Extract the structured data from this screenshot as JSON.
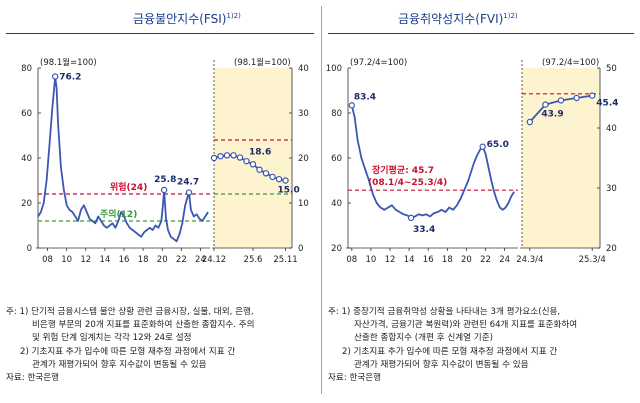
{
  "titles": {
    "fsi": "금융불안지수(FSI)",
    "fsi_sup": "1)2)",
    "fvi": "금융취약성지수(FVI)",
    "fvi_sup": "1)2)"
  },
  "colors": {
    "line": "#3a57b4",
    "marker_fill": "#ffffff",
    "danger": "#c8102e",
    "caution": "#3a9a3a",
    "shade": "#fdf3cf",
    "axis": "#333333",
    "title": "#1a3e8a"
  },
  "chart_data": [
    {
      "type": "line",
      "name": "FSI",
      "panels": [
        {
          "id": "fsi-main",
          "axis_note": "(98.1월=100)",
          "ylim": [
            0,
            80
          ],
          "yticks": [
            0,
            20,
            40,
            60,
            80
          ],
          "xlim": [
            2007,
            2025
          ],
          "xticks": [
            "08",
            "10",
            "12",
            "14",
            "16",
            "18",
            "20",
            "22",
            "24"
          ],
          "xtick_values": [
            2008,
            2010,
            2012,
            2014,
            2016,
            2018,
            2020,
            2022,
            2024
          ],
          "series": [
            {
              "name": "FSI",
              "x": [
                2007.0,
                2007.3,
                2007.6,
                2007.9,
                2008.2,
                2008.5,
                2008.8,
                2008.95,
                2009.1,
                2009.4,
                2009.7,
                2010.0,
                2010.3,
                2010.6,
                2010.9,
                2011.2,
                2011.5,
                2011.8,
                2012.1,
                2012.4,
                2012.7,
                2013.0,
                2013.3,
                2013.6,
                2013.9,
                2014.2,
                2014.5,
                2014.8,
                2015.1,
                2015.4,
                2015.7,
                2016.0,
                2016.3,
                2016.6,
                2016.9,
                2017.2,
                2017.5,
                2017.8,
                2018.1,
                2018.4,
                2018.7,
                2019.0,
                2019.3,
                2019.6,
                2019.9,
                2020.05,
                2020.2,
                2020.4,
                2020.6,
                2020.9,
                2021.2,
                2021.5,
                2021.8,
                2022.1,
                2022.4,
                2022.6,
                2022.8,
                2023.0,
                2023.3,
                2023.6,
                2023.9,
                2024.2,
                2024.5,
                2024.8
              ],
              "values": [
                14,
                16,
                20,
                30,
                46,
                62,
                76.2,
                71,
                55,
                36,
                26,
                19,
                17,
                16,
                14,
                12,
                17,
                19,
                16,
                13,
                12,
                11,
                14,
                12,
                10,
                9,
                10,
                11,
                9,
                12,
                16,
                14,
                11,
                9,
                8,
                7,
                6,
                5,
                7,
                8,
                9,
                8,
                10,
                9,
                12,
                18,
                25.8,
                13,
                8,
                5,
                4,
                3,
                6,
                11,
                19,
                22,
                24.7,
                17,
                14,
                15,
                13,
                12,
                14,
                16
              ]
            }
          ],
          "thresholds": [
            {
              "label": "위험(24)",
              "value": 24,
              "kind": "danger"
            },
            {
              "label": "주의(12)",
              "value": 12,
              "kind": "caution"
            }
          ],
          "annotations": [
            {
              "text": "76.2",
              "x": 2008.8,
              "y": 76.2
            },
            {
              "text": "25.8",
              "x": 2020.2,
              "y": 25.8
            },
            {
              "text": "24.7",
              "x": 2022.8,
              "y": 24.7
            }
          ]
        },
        {
          "id": "fsi-zoom",
          "axis_note": "(98.1월=100)",
          "ylim": [
            0,
            40
          ],
          "yticks": [
            0,
            10,
            20,
            30,
            40
          ],
          "xlim": [
            0,
            12
          ],
          "xticks": [
            "24.12",
            "25.6",
            "25.11"
          ],
          "xtick_values": [
            0,
            6,
            11
          ],
          "series": [
            {
              "name": "FSI",
              "x": [
                0,
                1,
                2,
                3,
                4,
                5,
                6,
                7,
                8,
                9,
                10,
                11
              ],
              "values": [
                20.0,
                20.4,
                20.6,
                20.6,
                20.1,
                19.3,
                18.6,
                17.4,
                16.6,
                15.8,
                15.3,
                15.0
              ]
            }
          ],
          "thresholds": [
            {
              "label": "위험(24)",
              "value": 24,
              "kind": "danger"
            },
            {
              "label": "주의(12)",
              "value": 12,
              "kind": "caution"
            }
          ],
          "annotations": [
            {
              "text": "18.6",
              "x": 6,
              "y": 18.6
            },
            {
              "text": "15.0",
              "x": 11,
              "y": 15.0
            }
          ]
        }
      ]
    },
    {
      "type": "line",
      "name": "FVI",
      "panels": [
        {
          "id": "fvi-main",
          "axis_note": "(97.2/4=100)",
          "ylim": [
            20,
            100
          ],
          "yticks": [
            20,
            40,
            60,
            80,
            100
          ],
          "xlim": [
            2007.6,
            2025.4
          ],
          "xticks": [
            "08",
            "10",
            "12",
            "14",
            "16",
            "18",
            "20",
            "22",
            "24"
          ],
          "xtick_values": [
            2008,
            2010,
            2012,
            2014,
            2016,
            2018,
            2020,
            2022,
            2024
          ],
          "series": [
            {
              "name": "FVI",
              "x": [
                2008.0,
                2008.3,
                2008.6,
                2009.0,
                2009.4,
                2009.8,
                2010.2,
                2010.6,
                2011.0,
                2011.4,
                2011.8,
                2012.2,
                2012.6,
                2013.0,
                2013.4,
                2013.8,
                2014.2,
                2014.6,
                2015.0,
                2015.4,
                2015.8,
                2016.2,
                2016.6,
                2017.0,
                2017.4,
                2017.8,
                2018.2,
                2018.6,
                2019.0,
                2019.4,
                2019.8,
                2020.2,
                2020.5,
                2020.8,
                2021.1,
                2021.4,
                2021.7,
                2022.0,
                2022.3,
                2022.6,
                2022.9,
                2023.2,
                2023.5,
                2023.8,
                2024.1,
                2024.4,
                2024.7,
                2025.0
              ],
              "values": [
                83.4,
                78,
                68,
                60,
                55,
                50,
                44,
                40,
                38,
                37,
                38,
                39,
                37,
                36,
                35,
                34.5,
                33.4,
                34,
                35,
                34.5,
                35,
                34,
                35.5,
                36,
                37,
                36,
                38,
                37,
                39,
                42,
                46,
                50,
                54,
                58,
                61,
                63.5,
                65.0,
                62,
                56,
                50,
                45,
                41,
                38,
                37,
                38,
                40,
                43,
                45
              ]
            }
          ],
          "thresholds": [
            {
              "label": "장기평균: 45.7",
              "value": 45.7,
              "kind": "danger",
              "note": "(08.1/4~25.3/4)"
            }
          ],
          "annotations": [
            {
              "text": "83.4",
              "x": 2008.0,
              "y": 83.4
            },
            {
              "text": "33.4",
              "x": 2014.2,
              "y": 33.4
            },
            {
              "text": "65.0",
              "x": 2021.7,
              "y": 65.0
            }
          ]
        },
        {
          "id": "fvi-zoom",
          "axis_note": "(97.2/4=100)",
          "ylim": [
            20,
            50
          ],
          "yticks": [
            20,
            30,
            40,
            50
          ],
          "xlim": [
            -0.5,
            4.5
          ],
          "xticks": [
            "24.3/4",
            "25.3/4"
          ],
          "xtick_values": [
            0,
            4
          ],
          "series": [
            {
              "name": "FVI",
              "x": [
                0,
                1,
                2,
                3,
                4
              ],
              "values": [
                41.0,
                43.9,
                44.6,
                45.0,
                45.4
              ]
            }
          ],
          "thresholds": [
            {
              "label": "장기평균: 45.7",
              "value": 45.7,
              "kind": "danger"
            }
          ],
          "annotations": [
            {
              "text": "43.9",
              "x": 1,
              "y": 43.9
            },
            {
              "text": "45.4",
              "x": 4,
              "y": 45.4
            }
          ]
        }
      ]
    }
  ],
  "notes": {
    "fsi": {
      "lines": [
        "주:  1) 단기적 금융시스템 불안 상황 관련 금융시장, 실물, 대외, 은행,",
        "비은행 부문의 20개 지표를 표준화하여 산출한 종합지수. 주의",
        "및 위험 단계 임계치는 각각 12와 24로 설정",
        "2) 기초지표 추가 입수에 따른 모형 재추정 과정에서 지표 간",
        "관계가 재평가되어 향후 지수값이 변동될 수 있음"
      ],
      "source": "자료: 한국은행"
    },
    "fvi": {
      "lines": [
        "주:  1) 중장기적 금융취약성 상황을 나타내는 3개 평가요소(신용,",
        "자산가격, 금융기관 복원력)와 관련된 64개 지표를 표준화하여",
        "산출한 종합지수 (개편 후 신계열 기준)",
        "2) 기초지표 추가 입수에 따른 모형 재추정 과정에서 지표 간",
        "관계가 재평가되어 향후 지수값이 변동될 수 있음"
      ],
      "source": "자료: 한국은행"
    }
  }
}
